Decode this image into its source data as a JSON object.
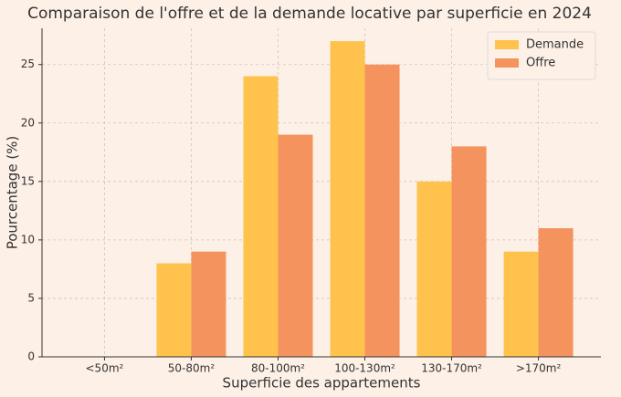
{
  "chart_data": {
    "type": "bar",
    "title": "Comparaison de l'offre et de la demande locative par superficie en 2024",
    "x_label": "Superficie des appartements",
    "y_label": "Pourcentage (%)",
    "categories": [
      "<50m²",
      "50-80m²",
      "80-100m²",
      "100-130m²",
      "130-170m²",
      ">170m²"
    ],
    "series": [
      {
        "name": "Demande",
        "color": "#ffc34d",
        "values": [
          0,
          8,
          24,
          27,
          15,
          9
        ]
      },
      {
        "name": "Offre",
        "color": "#f4935e",
        "values": [
          0,
          9,
          19,
          25,
          18,
          11
        ]
      }
    ],
    "ylim": [
      0,
      28.1
    ],
    "yticks": [
      0,
      5,
      10,
      15,
      20,
      25
    ],
    "grid": true,
    "legend": "upper-right"
  }
}
